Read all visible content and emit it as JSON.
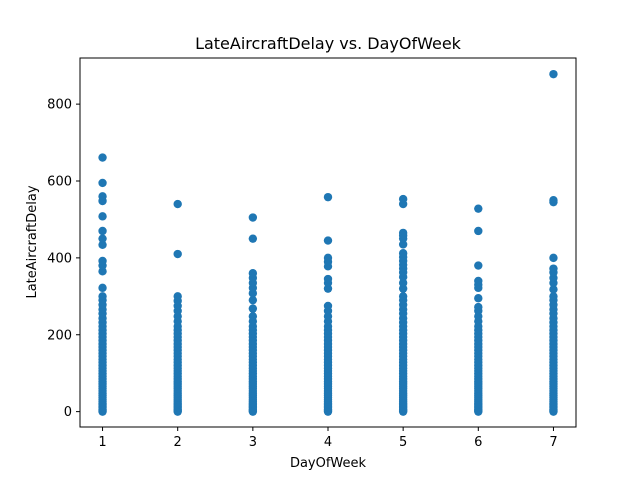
{
  "chart_data": {
    "type": "scatter",
    "title": "LateAircraftDelay vs. DayOfWeek",
    "xlabel": "DayOfWeek",
    "ylabel": "LateAircraftDelay",
    "xlim": [
      0.7,
      7.3
    ],
    "ylim": [
      -40,
      920
    ],
    "xticks": [
      1,
      2,
      3,
      4,
      5,
      6,
      7
    ],
    "yticks": [
      0,
      200,
      400,
      600,
      800
    ],
    "grid": false,
    "marker_color": "#1f77b4",
    "series": [
      {
        "points": [
          [
            1,
            0
          ],
          [
            1,
            3
          ],
          [
            1,
            6
          ],
          [
            1,
            10
          ],
          [
            1,
            14
          ],
          [
            1,
            18
          ],
          [
            1,
            22
          ],
          [
            1,
            27
          ],
          [
            1,
            32
          ],
          [
            1,
            37
          ],
          [
            1,
            42
          ],
          [
            1,
            48
          ],
          [
            1,
            54
          ],
          [
            1,
            60
          ],
          [
            1,
            66
          ],
          [
            1,
            72
          ],
          [
            1,
            78
          ],
          [
            1,
            85
          ],
          [
            1,
            92
          ],
          [
            1,
            99
          ],
          [
            1,
            106
          ],
          [
            1,
            113
          ],
          [
            1,
            120
          ],
          [
            1,
            128
          ],
          [
            1,
            136
          ],
          [
            1,
            144
          ],
          [
            1,
            152
          ],
          [
            1,
            160
          ],
          [
            1,
            168
          ],
          [
            1,
            176
          ],
          [
            1,
            185
          ],
          [
            1,
            194
          ],
          [
            1,
            203
          ],
          [
            1,
            212
          ],
          [
            1,
            222
          ],
          [
            1,
            232
          ],
          [
            1,
            243
          ],
          [
            1,
            255
          ],
          [
            1,
            266
          ],
          [
            1,
            278
          ],
          [
            1,
            290
          ],
          [
            1,
            300
          ],
          [
            1,
            322
          ],
          [
            1,
            365
          ],
          [
            1,
            380
          ],
          [
            1,
            392
          ],
          [
            1,
            434
          ],
          [
            1,
            450
          ],
          [
            1,
            470
          ],
          [
            1,
            508
          ],
          [
            1,
            548
          ],
          [
            1,
            560
          ],
          [
            1,
            595
          ],
          [
            1,
            661
          ],
          [
            2,
            0
          ],
          [
            2,
            3
          ],
          [
            2,
            6
          ],
          [
            2,
            10
          ],
          [
            2,
            14
          ],
          [
            2,
            18
          ],
          [
            2,
            22
          ],
          [
            2,
            27
          ],
          [
            2,
            32
          ],
          [
            2,
            37
          ],
          [
            2,
            42
          ],
          [
            2,
            48
          ],
          [
            2,
            54
          ],
          [
            2,
            60
          ],
          [
            2,
            66
          ],
          [
            2,
            72
          ],
          [
            2,
            78
          ],
          [
            2,
            85
          ],
          [
            2,
            92
          ],
          [
            2,
            99
          ],
          [
            2,
            106
          ],
          [
            2,
            113
          ],
          [
            2,
            120
          ],
          [
            2,
            128
          ],
          [
            2,
            136
          ],
          [
            2,
            144
          ],
          [
            2,
            152
          ],
          [
            2,
            160
          ],
          [
            2,
            168
          ],
          [
            2,
            176
          ],
          [
            2,
            185
          ],
          [
            2,
            194
          ],
          [
            2,
            203
          ],
          [
            2,
            212
          ],
          [
            2,
            222
          ],
          [
            2,
            235
          ],
          [
            2,
            248
          ],
          [
            2,
            262
          ],
          [
            2,
            275
          ],
          [
            2,
            288
          ],
          [
            2,
            300
          ],
          [
            2,
            410
          ],
          [
            2,
            540
          ],
          [
            3,
            0
          ],
          [
            3,
            3
          ],
          [
            3,
            6
          ],
          [
            3,
            10
          ],
          [
            3,
            14
          ],
          [
            3,
            18
          ],
          [
            3,
            22
          ],
          [
            3,
            27
          ],
          [
            3,
            32
          ],
          [
            3,
            37
          ],
          [
            3,
            42
          ],
          [
            3,
            48
          ],
          [
            3,
            54
          ],
          [
            3,
            60
          ],
          [
            3,
            66
          ],
          [
            3,
            72
          ],
          [
            3,
            78
          ],
          [
            3,
            85
          ],
          [
            3,
            92
          ],
          [
            3,
            99
          ],
          [
            3,
            106
          ],
          [
            3,
            113
          ],
          [
            3,
            120
          ],
          [
            3,
            128
          ],
          [
            3,
            136
          ],
          [
            3,
            144
          ],
          [
            3,
            152
          ],
          [
            3,
            160
          ],
          [
            3,
            168
          ],
          [
            3,
            176
          ],
          [
            3,
            185
          ],
          [
            3,
            194
          ],
          [
            3,
            203
          ],
          [
            3,
            212
          ],
          [
            3,
            222
          ],
          [
            3,
            235
          ],
          [
            3,
            248
          ],
          [
            3,
            268
          ],
          [
            3,
            290
          ],
          [
            3,
            308
          ],
          [
            3,
            322
          ],
          [
            3,
            335
          ],
          [
            3,
            348
          ],
          [
            3,
            360
          ],
          [
            3,
            450
          ],
          [
            3,
            505
          ],
          [
            4,
            0
          ],
          [
            4,
            3
          ],
          [
            4,
            6
          ],
          [
            4,
            10
          ],
          [
            4,
            14
          ],
          [
            4,
            18
          ],
          [
            4,
            22
          ],
          [
            4,
            27
          ],
          [
            4,
            32
          ],
          [
            4,
            37
          ],
          [
            4,
            42
          ],
          [
            4,
            48
          ],
          [
            4,
            54
          ],
          [
            4,
            60
          ],
          [
            4,
            66
          ],
          [
            4,
            72
          ],
          [
            4,
            78
          ],
          [
            4,
            85
          ],
          [
            4,
            92
          ],
          [
            4,
            99
          ],
          [
            4,
            106
          ],
          [
            4,
            113
          ],
          [
            4,
            120
          ],
          [
            4,
            128
          ],
          [
            4,
            136
          ],
          [
            4,
            144
          ],
          [
            4,
            152
          ],
          [
            4,
            160
          ],
          [
            4,
            168
          ],
          [
            4,
            176
          ],
          [
            4,
            185
          ],
          [
            4,
            194
          ],
          [
            4,
            203
          ],
          [
            4,
            212
          ],
          [
            4,
            222
          ],
          [
            4,
            235
          ],
          [
            4,
            248
          ],
          [
            4,
            262
          ],
          [
            4,
            275
          ],
          [
            4,
            320
          ],
          [
            4,
            335
          ],
          [
            4,
            345
          ],
          [
            4,
            378
          ],
          [
            4,
            390
          ],
          [
            4,
            400
          ],
          [
            4,
            445
          ],
          [
            4,
            558
          ],
          [
            5,
            0
          ],
          [
            5,
            3
          ],
          [
            5,
            6
          ],
          [
            5,
            10
          ],
          [
            5,
            14
          ],
          [
            5,
            18
          ],
          [
            5,
            22
          ],
          [
            5,
            27
          ],
          [
            5,
            32
          ],
          [
            5,
            37
          ],
          [
            5,
            42
          ],
          [
            5,
            48
          ],
          [
            5,
            54
          ],
          [
            5,
            60
          ],
          [
            5,
            66
          ],
          [
            5,
            72
          ],
          [
            5,
            78
          ],
          [
            5,
            85
          ],
          [
            5,
            92
          ],
          [
            5,
            99
          ],
          [
            5,
            106
          ],
          [
            5,
            113
          ],
          [
            5,
            120
          ],
          [
            5,
            128
          ],
          [
            5,
            136
          ],
          [
            5,
            144
          ],
          [
            5,
            152
          ],
          [
            5,
            160
          ],
          [
            5,
            168
          ],
          [
            5,
            176
          ],
          [
            5,
            185
          ],
          [
            5,
            194
          ],
          [
            5,
            203
          ],
          [
            5,
            212
          ],
          [
            5,
            222
          ],
          [
            5,
            232
          ],
          [
            5,
            243
          ],
          [
            5,
            255
          ],
          [
            5,
            266
          ],
          [
            5,
            278
          ],
          [
            5,
            290
          ],
          [
            5,
            300
          ],
          [
            5,
            320
          ],
          [
            5,
            335
          ],
          [
            5,
            350
          ],
          [
            5,
            362
          ],
          [
            5,
            372
          ],
          [
            5,
            382
          ],
          [
            5,
            392
          ],
          [
            5,
            402
          ],
          [
            5,
            412
          ],
          [
            5,
            435
          ],
          [
            5,
            450
          ],
          [
            5,
            458
          ],
          [
            5,
            465
          ],
          [
            5,
            540
          ],
          [
            5,
            553
          ],
          [
            6,
            0
          ],
          [
            6,
            3
          ],
          [
            6,
            6
          ],
          [
            6,
            10
          ],
          [
            6,
            14
          ],
          [
            6,
            18
          ],
          [
            6,
            22
          ],
          [
            6,
            27
          ],
          [
            6,
            32
          ],
          [
            6,
            37
          ],
          [
            6,
            42
          ],
          [
            6,
            48
          ],
          [
            6,
            54
          ],
          [
            6,
            60
          ],
          [
            6,
            66
          ],
          [
            6,
            72
          ],
          [
            6,
            78
          ],
          [
            6,
            85
          ],
          [
            6,
            92
          ],
          [
            6,
            99
          ],
          [
            6,
            106
          ],
          [
            6,
            113
          ],
          [
            6,
            120
          ],
          [
            6,
            128
          ],
          [
            6,
            136
          ],
          [
            6,
            144
          ],
          [
            6,
            152
          ],
          [
            6,
            160
          ],
          [
            6,
            168
          ],
          [
            6,
            176
          ],
          [
            6,
            185
          ],
          [
            6,
            194
          ],
          [
            6,
            203
          ],
          [
            6,
            212
          ],
          [
            6,
            222
          ],
          [
            6,
            235
          ],
          [
            6,
            248
          ],
          [
            6,
            262
          ],
          [
            6,
            272
          ],
          [
            6,
            295
          ],
          [
            6,
            322
          ],
          [
            6,
            330
          ],
          [
            6,
            340
          ],
          [
            6,
            380
          ],
          [
            6,
            470
          ],
          [
            6,
            528
          ],
          [
            7,
            0
          ],
          [
            7,
            3
          ],
          [
            7,
            6
          ],
          [
            7,
            10
          ],
          [
            7,
            14
          ],
          [
            7,
            18
          ],
          [
            7,
            22
          ],
          [
            7,
            27
          ],
          [
            7,
            32
          ],
          [
            7,
            37
          ],
          [
            7,
            42
          ],
          [
            7,
            48
          ],
          [
            7,
            54
          ],
          [
            7,
            60
          ],
          [
            7,
            66
          ],
          [
            7,
            72
          ],
          [
            7,
            78
          ],
          [
            7,
            85
          ],
          [
            7,
            92
          ],
          [
            7,
            99
          ],
          [
            7,
            106
          ],
          [
            7,
            113
          ],
          [
            7,
            120
          ],
          [
            7,
            128
          ],
          [
            7,
            136
          ],
          [
            7,
            144
          ],
          [
            7,
            152
          ],
          [
            7,
            160
          ],
          [
            7,
            168
          ],
          [
            7,
            176
          ],
          [
            7,
            185
          ],
          [
            7,
            194
          ],
          [
            7,
            203
          ],
          [
            7,
            212
          ],
          [
            7,
            222
          ],
          [
            7,
            232
          ],
          [
            7,
            243
          ],
          [
            7,
            255
          ],
          [
            7,
            266
          ],
          [
            7,
            278
          ],
          [
            7,
            290
          ],
          [
            7,
            300
          ],
          [
            7,
            318
          ],
          [
            7,
            335
          ],
          [
            7,
            348
          ],
          [
            7,
            362
          ],
          [
            7,
            372
          ],
          [
            7,
            400
          ],
          [
            7,
            545
          ],
          [
            7,
            550
          ],
          [
            7,
            878
          ]
        ]
      }
    ]
  }
}
